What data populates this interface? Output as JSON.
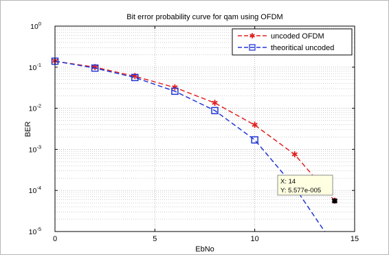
{
  "chart_data": {
    "type": "line",
    "title": "Bit error probability curve for qam using OFDM",
    "xlabel": "EbNo",
    "ylabel": "BER",
    "xlim": [
      0,
      15
    ],
    "ylim": [
      1e-05,
      1
    ],
    "y_scale": "log",
    "grid": true,
    "legend_position": "top-right",
    "x_ticks": [
      0,
      5,
      10,
      15
    ],
    "x_tick_labels": [
      "0",
      "5",
      "10",
      "15"
    ],
    "y_ticks": [
      1e-05,
      0.0001,
      0.001,
      0.01,
      0.1,
      1
    ],
    "y_tick_labels": [
      {
        "base": "10",
        "exp": "-5"
      },
      {
        "base": "10",
        "exp": "-4"
      },
      {
        "base": "10",
        "exp": "-3"
      },
      {
        "base": "10",
        "exp": "-2"
      },
      {
        "base": "10",
        "exp": "-1"
      },
      {
        "base": "10",
        "exp": "0"
      }
    ],
    "series": [
      {
        "name": "uncoded OFDM",
        "color": "#e02020",
        "marker": "star",
        "line_style": "dashed",
        "x": [
          0,
          2,
          4,
          6,
          8,
          10,
          12,
          14
        ],
        "y": [
          0.14,
          0.1,
          0.06,
          0.032,
          0.0135,
          0.0039,
          0.00075,
          5.577e-05
        ]
      },
      {
        "name": "theoritical uncoded",
        "color": "#1f35d6",
        "marker": "square",
        "line_style": "dashed",
        "x": [
          0,
          2,
          4,
          6,
          8,
          10,
          12,
          13.5
        ],
        "y": [
          0.14,
          0.095,
          0.056,
          0.026,
          0.0088,
          0.0017,
          0.00012,
          1e-05
        ],
        "marker_count": 6
      }
    ],
    "datatip": {
      "x_label": "X: 14",
      "y_label": "Y: 5.577e-005",
      "x": 14,
      "y": 5.577e-05
    }
  }
}
